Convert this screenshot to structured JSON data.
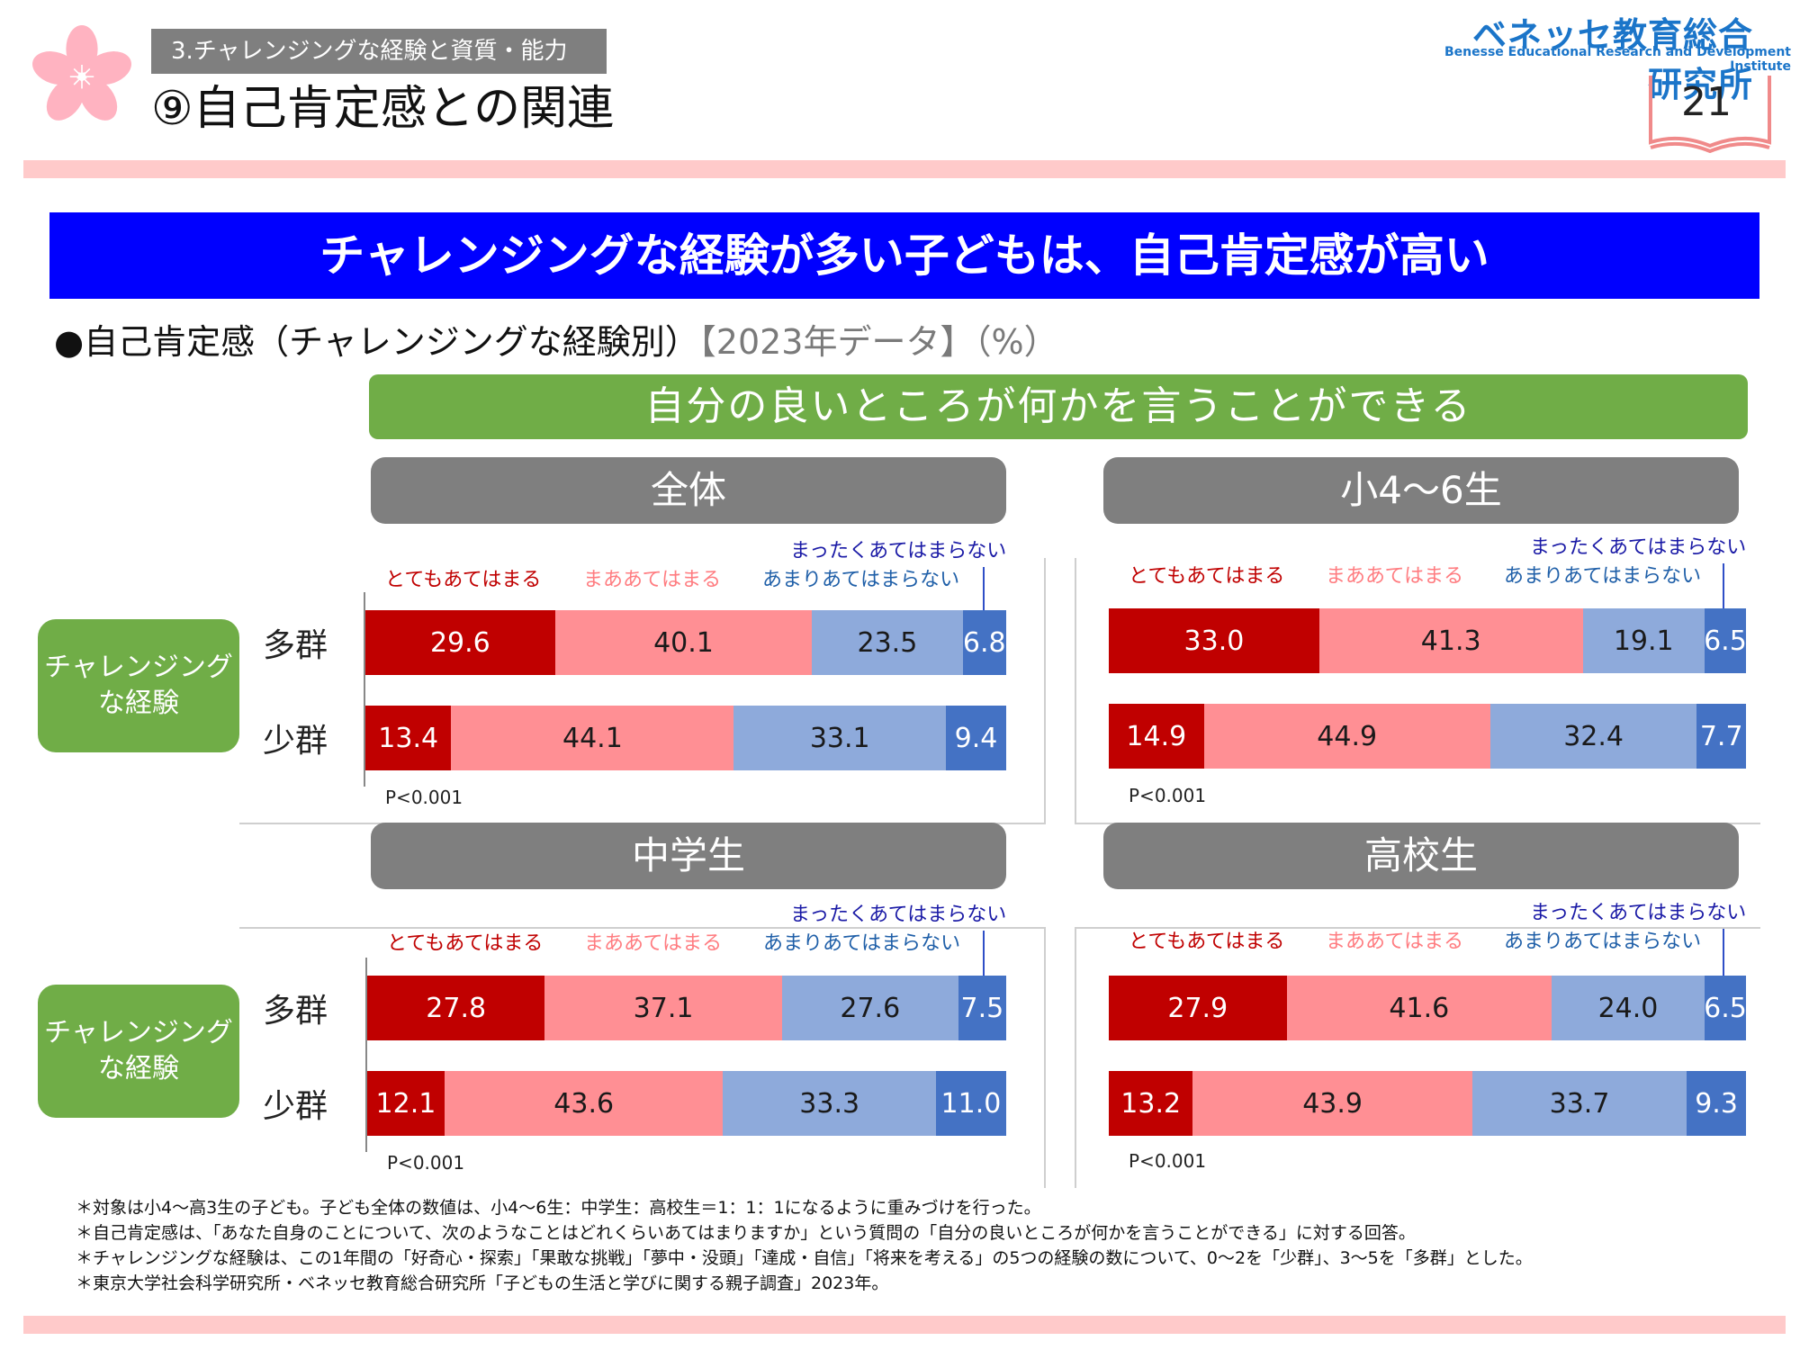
{
  "header": {
    "section_label": "3.チャレンジングな経験と資質・能力",
    "slide_title": "⑨自己肯定感との関連",
    "org_jp": "ベネッセ教育総合研究所",
    "org_en": "Benesse Educational Research and Development Institute",
    "page_number": "21"
  },
  "headline": "チャレンジングな経験が多い子どもは、自己肯定感が高い",
  "subhead": {
    "text": "●自己肯定感（チャレンジングな経験別）",
    "note": "【2023年データ】（%）"
  },
  "question_banner": "自分の良いところが何かを言うことができる",
  "group_box_label": "チャレンジングな経験",
  "colors": {
    "very_true": "#c00000",
    "somewhat_true": "#ff8f94",
    "not_very_true": "#8eaadb",
    "not_at_all": "#4472c4",
    "accent_green": "#70ad47",
    "headline_blue": "#0000ff"
  },
  "chart_data": [
    {
      "type": "bar",
      "stacked": "horizontal-100%",
      "title": "全体",
      "categories": [
        "多群",
        "少群"
      ],
      "series": [
        {
          "name": "とてもあてはまる",
          "values": [
            29.6,
            13.4
          ]
        },
        {
          "name": "まああてはまる",
          "values": [
            40.1,
            44.1
          ]
        },
        {
          "name": "あまりあてはまらない",
          "values": [
            23.5,
            33.1
          ]
        },
        {
          "name": "まったくあてはまらない",
          "values": [
            6.8,
            9.4
          ]
        }
      ],
      "note": "P<0.001"
    },
    {
      "type": "bar",
      "stacked": "horizontal-100%",
      "title": "小4～6生",
      "categories": [
        "多群",
        "少群"
      ],
      "series": [
        {
          "name": "とてもあてはまる",
          "values": [
            33.0,
            14.9
          ]
        },
        {
          "name": "まああてはまる",
          "values": [
            41.3,
            44.9
          ]
        },
        {
          "name": "あまりあてはまらない",
          "values": [
            19.1,
            32.4
          ]
        },
        {
          "name": "まったくあてはまらない",
          "values": [
            6.5,
            7.7
          ]
        }
      ],
      "note": "P<0.001"
    },
    {
      "type": "bar",
      "stacked": "horizontal-100%",
      "title": "中学生",
      "categories": [
        "多群",
        "少群"
      ],
      "series": [
        {
          "name": "とてもあてはまる",
          "values": [
            27.8,
            12.1
          ]
        },
        {
          "name": "まああてはまる",
          "values": [
            37.1,
            43.6
          ]
        },
        {
          "name": "あまりあてはまらない",
          "values": [
            27.6,
            33.3
          ]
        },
        {
          "name": "まったくあてはまらない",
          "values": [
            7.5,
            11.0
          ]
        }
      ],
      "note": "P<0.001"
    },
    {
      "type": "bar",
      "stacked": "horizontal-100%",
      "title": "高校生",
      "categories": [
        "多群",
        "少群"
      ],
      "series": [
        {
          "name": "とてもあてはまる",
          "values": [
            27.9,
            13.2
          ]
        },
        {
          "name": "まああてはまる",
          "values": [
            41.6,
            43.9
          ]
        },
        {
          "name": "あまりあてはまらない",
          "values": [
            24.0,
            33.7
          ]
        },
        {
          "name": "まったくあてはまらない",
          "values": [
            6.5,
            9.3
          ]
        }
      ],
      "note": "P<0.001"
    }
  ],
  "footnotes": [
    "＊対象は小4～高3生の子ども。子ども全体の数値は、小4～6生：中学生：高校生＝1：1：1になるように重みづけを行った。",
    "＊自己肯定感は、「あなた自身のことについて、次のようなことはどれくらいあてはまりますか」という質問の「自分の良いところが何かを言うことができる」に対する回答。",
    "＊チャレンジングな経験は、この1年間の「好奇心・探索」「果敢な挑戦」「夢中・没頭」「達成・自信」「将来を考える」の5つの経験の数について、0～2を「少群」、3～5を「多群」とした。",
    "＊東京大学社会科学研究所・ベネッセ教育総合研究所「子どもの生活と学びに関する親子調査」2023年。"
  ]
}
